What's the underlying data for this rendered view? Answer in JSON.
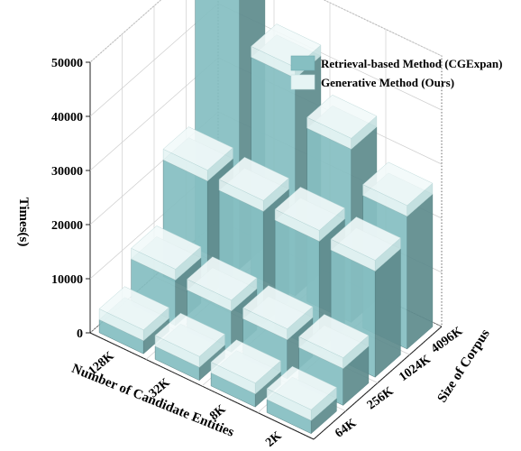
{
  "chart_data": {
    "type": "bar3d",
    "title": "",
    "zlabel": "Times(s)",
    "xlabel": "Number of Candidate Entities",
    "ylabel": "Size of Corpus",
    "zlim": [
      0,
      50000
    ],
    "zticks": [
      0,
      10000,
      20000,
      30000,
      40000,
      50000
    ],
    "x_categories": [
      "128K",
      "32K",
      "8K",
      "2K"
    ],
    "y_categories": [
      "64K",
      "256K",
      "1024K",
      "4096K"
    ],
    "grid": true,
    "legend_position": "top-right",
    "series": [
      {
        "name": "Retrieval-based Method (CGExpan)",
        "color": "#86bfc2",
        "values": [
          [
            2400,
            8400,
            21500,
            50000
          ],
          [
            2400,
            7600,
            20800,
            40200
          ],
          [
            2400,
            7200,
            20200,
            32000
          ],
          [
            2400,
            6800,
            19600,
            24500
          ]
        ]
      },
      {
        "name": "Generative Method (Ours)",
        "color": "#e6f4f4",
        "values": [
          [
            2000,
            2000,
            2000,
            2000
          ],
          [
            2000,
            2000,
            2000,
            2000
          ],
          [
            2000,
            2000,
            2000,
            2000
          ],
          [
            2000,
            2000,
            2000,
            2000
          ]
        ]
      }
    ]
  }
}
